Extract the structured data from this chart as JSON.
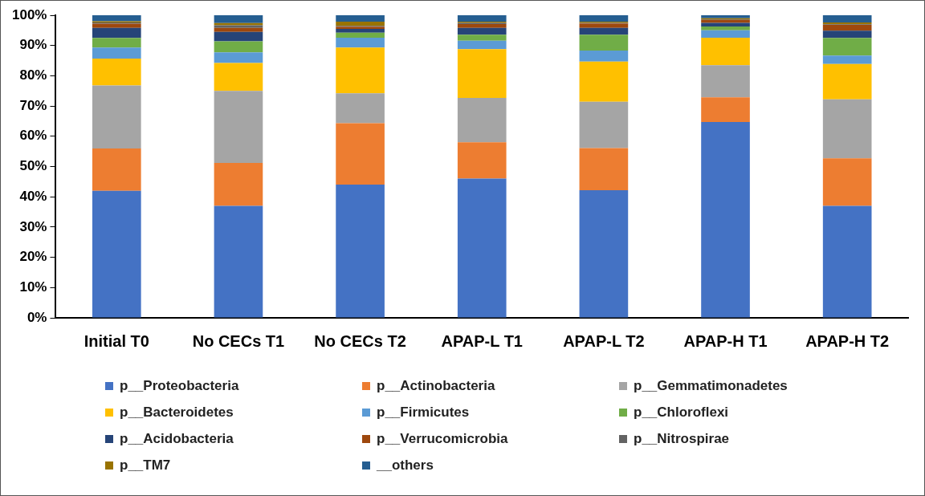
{
  "chart_data": {
    "type": "bar",
    "stacked": true,
    "legend": "bottom",
    "grid": false,
    "categories": [
      "Initial T0",
      "No CECs T1",
      "No CECs T2",
      "APAP-L T1",
      "APAP-L T2",
      "APAP-H T1",
      "APAP-H T2"
    ],
    "ylim": [
      0,
      100
    ],
    "yticks": [
      {
        "value": 0,
        "label": "0%"
      },
      {
        "value": 10,
        "label": "10%"
      },
      {
        "value": 20,
        "label": "20%"
      },
      {
        "value": 30,
        "label": "30%"
      },
      {
        "value": 40,
        "label": "40%"
      },
      {
        "value": 50,
        "label": "50%"
      },
      {
        "value": 60,
        "label": "60%"
      },
      {
        "value": 70,
        "label": "70%"
      },
      {
        "value": 80,
        "label": "80%"
      },
      {
        "value": 90,
        "label": "90%"
      },
      {
        "value": 100,
        "label": "100%"
      }
    ],
    "series": [
      {
        "name": "p__Proteobacteria",
        "color": "#4472c4",
        "values": [
          42,
          37,
          44,
          46,
          42.2,
          64.7,
          37
        ]
      },
      {
        "name": "p__Actinobacteria",
        "color": "#ed7d31",
        "values": [
          14,
          14.2,
          20.3,
          12,
          13.9,
          8.2,
          15.7
        ]
      },
      {
        "name": "p__Gemmatimonadetes",
        "color": "#a5a5a5",
        "values": [
          20.8,
          23.8,
          9.9,
          14.7,
          15.3,
          10.6,
          19.5
        ]
      },
      {
        "name": "p__Bacteroidetes",
        "color": "#ffc000",
        "values": [
          8.9,
          9.2,
          15.1,
          16.1,
          13.3,
          9.1,
          11.7
        ]
      },
      {
        "name": "p__Firmicutes",
        "color": "#5b9bd5",
        "values": [
          3.6,
          3.5,
          3.3,
          2.8,
          3.6,
          2.4,
          2.8
        ]
      },
      {
        "name": "p__Chloroflexi",
        "color": "#70ad47",
        "values": [
          3.2,
          3.7,
          1.6,
          2.0,
          5.3,
          1.3,
          5.8
        ]
      },
      {
        "name": "p__Acidobacteria",
        "color": "#264478",
        "values": [
          3.3,
          3.1,
          1.3,
          2.2,
          2.2,
          1.2,
          2.4
        ]
      },
      {
        "name": "p__Verrucomicrobia",
        "color": "#9e480e",
        "values": [
          1.4,
          1.3,
          0.7,
          1.3,
          1.5,
          1.0,
          1.9
        ]
      },
      {
        "name": "p__Nitrospirae",
        "color": "#636363",
        "values": [
          0.4,
          0.9,
          0.3,
          0.4,
          0.2,
          0.2,
          0.2
        ]
      },
      {
        "name": "p__TM7",
        "color": "#997300",
        "values": [
          0.4,
          0.7,
          1.4,
          0.4,
          0.4,
          0.3,
          0.6
        ]
      },
      {
        "name": "__others",
        "color": "#255e91",
        "values": [
          2.0,
          2.6,
          2.1,
          2.1,
          2.1,
          1.0,
          2.4
        ]
      }
    ]
  }
}
